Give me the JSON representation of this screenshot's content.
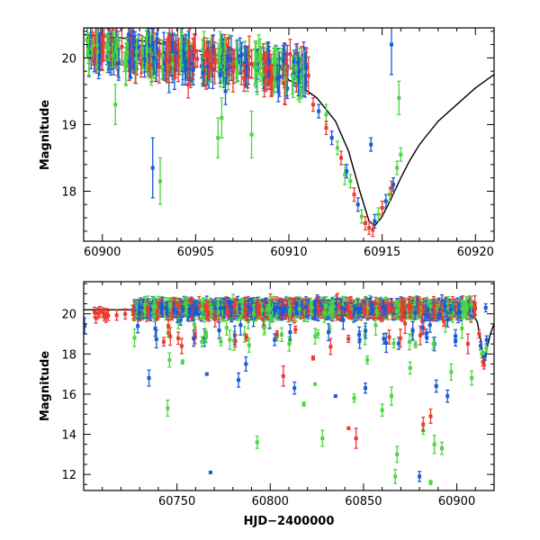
{
  "chart_data": [
    {
      "type": "scatter",
      "title": "",
      "xlabel": "",
      "ylabel": "Magnitude",
      "xlim": [
        60899.0,
        60921.0
      ],
      "ylim": [
        20.45,
        17.25
      ],
      "y_inverted": true,
      "x_ticks": [
        60900,
        60905,
        60910,
        60915,
        60920
      ],
      "y_ticks": [
        18,
        19,
        20
      ],
      "grid": false,
      "legend": "none",
      "colors": {
        "red": "#ee3a2e",
        "blue": "#1a5ad8",
        "green": "#4cd640",
        "model": "#000000"
      },
      "model_curve": [
        [
          60899.0,
          20.35
        ],
        [
          60901.0,
          20.3
        ],
        [
          60903.0,
          20.22
        ],
        [
          60905.0,
          20.12
        ],
        [
          60907.0,
          19.98
        ],
        [
          60909.0,
          19.8
        ],
        [
          60910.5,
          19.6
        ],
        [
          60911.5,
          19.4
        ],
        [
          60912.5,
          19.05
        ],
        [
          60913.2,
          18.6
        ],
        [
          60913.8,
          18.0
        ],
        [
          60914.3,
          17.55
        ],
        [
          60914.6,
          17.48
        ],
        [
          60915.0,
          17.62
        ],
        [
          60915.5,
          17.9
        ],
        [
          60916.0,
          18.2
        ],
        [
          60916.5,
          18.47
        ],
        [
          60917.0,
          18.7
        ],
        [
          60918.0,
          19.05
        ],
        [
          60919.0,
          19.3
        ],
        [
          60920.0,
          19.55
        ],
        [
          60921.0,
          19.75
        ]
      ],
      "highlight_points": [
        {
          "band": "blue",
          "x": 60902.7,
          "y": 18.35,
          "err": 0.45
        },
        {
          "band": "green",
          "x": 60903.1,
          "y": 18.15,
          "err": 0.35
        },
        {
          "band": "green",
          "x": 60906.2,
          "y": 18.8,
          "err": 0.3
        },
        {
          "band": "green",
          "x": 60906.4,
          "y": 19.1,
          "err": 0.3
        },
        {
          "band": "green",
          "x": 60908.0,
          "y": 18.85,
          "err": 0.35
        },
        {
          "band": "green",
          "x": 60900.7,
          "y": 19.3,
          "err": 0.3
        },
        {
          "band": "green",
          "x": 60913.0,
          "y": 18.25,
          "err": 0.15
        },
        {
          "band": "blue",
          "x": 60914.4,
          "y": 18.7,
          "err": 0.1
        },
        {
          "band": "blue",
          "x": 60915.5,
          "y": 20.2,
          "err": 0.45
        },
        {
          "band": "green",
          "x": 60915.9,
          "y": 19.4,
          "err": 0.25
        },
        {
          "band": "green",
          "x": 60912.0,
          "y": 19.15,
          "err": 0.15
        },
        {
          "band": "red",
          "x": 60904.6,
          "y": 19.6,
          "err": 0.2
        },
        {
          "band": "red",
          "x": 60907.6,
          "y": 19.7,
          "err": 0.2
        },
        {
          "band": "blue",
          "x": 60906.6,
          "y": 19.5,
          "err": 0.2
        }
      ],
      "peak_points": [
        {
          "band": "red",
          "x": 60911.3,
          "y": 19.3
        },
        {
          "band": "blue",
          "x": 60911.6,
          "y": 19.2
        },
        {
          "band": "red",
          "x": 60912.0,
          "y": 18.95
        },
        {
          "band": "blue",
          "x": 60912.3,
          "y": 18.8
        },
        {
          "band": "green",
          "x": 60912.6,
          "y": 18.65
        },
        {
          "band": "red",
          "x": 60912.8,
          "y": 18.5
        },
        {
          "band": "blue",
          "x": 60913.1,
          "y": 18.3
        },
        {
          "band": "green",
          "x": 60913.3,
          "y": 18.15
        },
        {
          "band": "red",
          "x": 60913.5,
          "y": 17.95
        },
        {
          "band": "blue",
          "x": 60913.7,
          "y": 17.8
        },
        {
          "band": "green",
          "x": 60913.9,
          "y": 17.62
        },
        {
          "band": "red",
          "x": 60914.1,
          "y": 17.52
        },
        {
          "band": "red",
          "x": 60914.3,
          "y": 17.45
        },
        {
          "band": "red",
          "x": 60914.5,
          "y": 17.42
        },
        {
          "band": "blue",
          "x": 60914.6,
          "y": 17.55
        },
        {
          "band": "green",
          "x": 60914.8,
          "y": 17.65
        },
        {
          "band": "red",
          "x": 60915.0,
          "y": 17.75
        },
        {
          "band": "blue",
          "x": 60915.2,
          "y": 17.85
        },
        {
          "band": "green",
          "x": 60915.4,
          "y": 17.95
        },
        {
          "band": "red",
          "x": 60915.5,
          "y": 18.05
        },
        {
          "band": "blue",
          "x": 60915.6,
          "y": 18.1
        },
        {
          "band": "green",
          "x": 60915.8,
          "y": 18.35
        },
        {
          "band": "green",
          "x": 60916.0,
          "y": 18.55
        }
      ]
    },
    {
      "type": "scatter",
      "title": "",
      "xlabel": "HJD−2400000",
      "ylabel": "Magnitude",
      "xlim": [
        60700.0,
        60920.0
      ],
      "ylim": [
        21.6,
        11.2
      ],
      "y_inverted": true,
      "x_ticks": [
        60750,
        60800,
        60850,
        60900
      ],
      "y_ticks": [
        12,
        14,
        16,
        18,
        20
      ],
      "grid": false,
      "legend": "none",
      "colors": {
        "red": "#ee3a2e",
        "blue": "#1a5ad8",
        "green": "#4cd640",
        "model": "#000000"
      },
      "model_curve": [
        [
          60700.0,
          20.2
        ],
        [
          60900.0,
          20.2
        ],
        [
          60908.0,
          20.1
        ],
        [
          60911.0,
          19.6
        ],
        [
          60913.0,
          18.6
        ],
        [
          60914.5,
          17.45
        ],
        [
          60916.0,
          18.2
        ],
        [
          60918.0,
          19.0
        ],
        [
          60920.0,
          19.5
        ]
      ],
      "outliers": [
        {
          "band": "blue",
          "x": 60768.0,
          "y": 12.1,
          "err": 0.0
        },
        {
          "band": "green",
          "x": 60867.0,
          "y": 11.9,
          "err": 0.35
        },
        {
          "band": "blue",
          "x": 60880.0,
          "y": 11.9,
          "err": 0.25
        },
        {
          "band": "green",
          "x": 60886.0,
          "y": 11.6,
          "err": 0.1
        },
        {
          "band": "green",
          "x": 60868.0,
          "y": 13.0,
          "err": 0.4
        },
        {
          "band": "green",
          "x": 60793.0,
          "y": 13.6,
          "err": 0.3
        },
        {
          "band": "green",
          "x": 60888.0,
          "y": 13.5,
          "err": 0.45
        },
        {
          "band": "green",
          "x": 60828.0,
          "y": 13.8,
          "err": 0.4
        },
        {
          "band": "green",
          "x": 60882.0,
          "y": 14.2,
          "err": 0.2
        },
        {
          "band": "green",
          "x": 60892.0,
          "y": 13.3,
          "err": 0.3
        },
        {
          "band": "red",
          "x": 60842.0,
          "y": 14.3,
          "err": 0.05
        },
        {
          "band": "red",
          "x": 60846.0,
          "y": 13.8,
          "err": 0.5
        },
        {
          "band": "red",
          "x": 60882.0,
          "y": 14.5,
          "err": 0.35
        },
        {
          "band": "red",
          "x": 60886.0,
          "y": 14.9,
          "err": 0.35
        },
        {
          "band": "green",
          "x": 60860.0,
          "y": 15.2,
          "err": 0.3
        },
        {
          "band": "green",
          "x": 60818.0,
          "y": 15.5,
          "err": 0.1
        },
        {
          "band": "green",
          "x": 60745.0,
          "y": 15.3,
          "err": 0.4
        },
        {
          "band": "blue",
          "x": 60835.0,
          "y": 15.9,
          "err": 0.05
        },
        {
          "band": "green",
          "x": 60845.0,
          "y": 15.8,
          "err": 0.2
        },
        {
          "band": "green",
          "x": 60865.0,
          "y": 15.9,
          "err": 0.45
        },
        {
          "band": "blue",
          "x": 60895.0,
          "y": 15.9,
          "err": 0.3
        },
        {
          "band": "blue",
          "x": 60735.0,
          "y": 16.8,
          "err": 0.4
        },
        {
          "band": "blue",
          "x": 60766.0,
          "y": 17.0,
          "err": 0.0
        },
        {
          "band": "blue",
          "x": 60783.0,
          "y": 16.7,
          "err": 0.35
        },
        {
          "band": "red",
          "x": 60807.0,
          "y": 16.9,
          "err": 0.5
        },
        {
          "band": "blue",
          "x": 60813.0,
          "y": 16.3,
          "err": 0.3
        },
        {
          "band": "green",
          "x": 60824.0,
          "y": 16.5,
          "err": 0.05
        },
        {
          "band": "blue",
          "x": 60851.0,
          "y": 16.3,
          "err": 0.25
        },
        {
          "band": "blue",
          "x": 60889.0,
          "y": 16.4,
          "err": 0.3
        },
        {
          "band": "green",
          "x": 60908.0,
          "y": 16.8,
          "err": 0.35
        },
        {
          "band": "green",
          "x": 60746.0,
          "y": 17.7,
          "err": 0.35
        },
        {
          "band": "green",
          "x": 60753.0,
          "y": 17.6,
          "err": 0.1
        },
        {
          "band": "blue",
          "x": 60787.0,
          "y": 17.5,
          "err": 0.35
        },
        {
          "band": "green",
          "x": 60852.0,
          "y": 17.7,
          "err": 0.2
        },
        {
          "band": "red",
          "x": 60823.0,
          "y": 17.8,
          "err": 0.1
        },
        {
          "band": "green",
          "x": 60875.0,
          "y": 17.3,
          "err": 0.3
        },
        {
          "band": "green",
          "x": 60897.0,
          "y": 17.1,
          "err": 0.4
        },
        {
          "band": "blue",
          "x": 60700.5,
          "y": 19.4,
          "err": 0.4
        }
      ],
      "peak_points": [
        {
          "band": "red",
          "x": 60912.0,
          "y": 19.0
        },
        {
          "band": "blue",
          "x": 60912.8,
          "y": 18.4
        },
        {
          "band": "green",
          "x": 60913.4,
          "y": 18.0
        },
        {
          "band": "red",
          "x": 60914.0,
          "y": 17.6
        },
        {
          "band": "red",
          "x": 60914.6,
          "y": 17.45
        },
        {
          "band": "blue",
          "x": 60915.2,
          "y": 17.9
        },
        {
          "band": "green",
          "x": 60915.8,
          "y": 18.3
        },
        {
          "band": "blue",
          "x": 60916.0,
          "y": 18.7
        },
        {
          "band": "blue",
          "x": 60915.5,
          "y": 20.3
        }
      ]
    }
  ]
}
